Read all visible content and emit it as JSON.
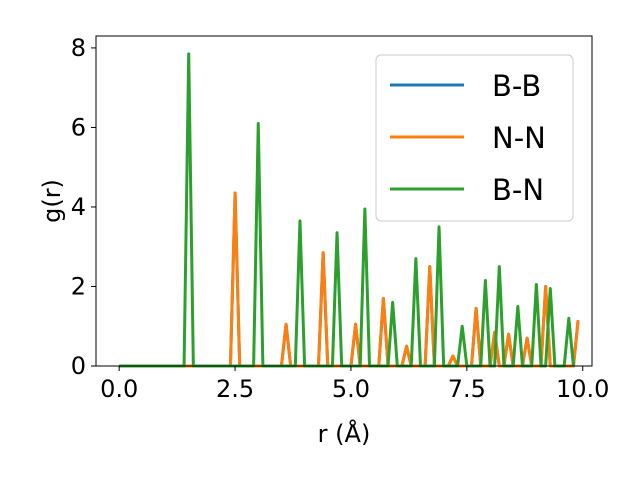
{
  "chart_data": {
    "type": "line",
    "xlabel": "r (Å)",
    "ylabel": "g(r)",
    "xlim": [
      -0.5,
      10.2
    ],
    "ylim": [
      0,
      8.3
    ],
    "xticks": [
      0.0,
      2.5,
      5.0,
      7.5,
      10.0
    ],
    "xtick_labels": [
      "0.0",
      "2.5",
      "5.0",
      "7.5",
      "10.0"
    ],
    "yticks": [
      0,
      2,
      4,
      6,
      8
    ],
    "ytick_labels": [
      "0",
      "2",
      "4",
      "6",
      "8"
    ],
    "grid": false,
    "legend_position": "top-right",
    "series": [
      {
        "name": "B-B",
        "color": "#1f77b4",
        "x": [
          0.0,
          2.4,
          2.5,
          2.6,
          3.5,
          3.6,
          3.7,
          4.3,
          4.4,
          4.5,
          5.0,
          5.1,
          5.2,
          5.6,
          5.7,
          5.8,
          6.1,
          6.2,
          6.3,
          6.6,
          6.7,
          6.8,
          7.1,
          7.2,
          7.3,
          7.6,
          7.7,
          7.8,
          8.0,
          8.1,
          8.2,
          8.3,
          8.4,
          8.5,
          8.7,
          8.8,
          8.9,
          9.1,
          9.2,
          9.3,
          9.8,
          9.9
        ],
        "y": [
          0.0,
          0.0,
          4.35,
          0.0,
          0.0,
          1.05,
          0.0,
          0.0,
          2.85,
          0.0,
          0.0,
          1.05,
          0.0,
          0.0,
          1.7,
          0.0,
          0.0,
          0.5,
          0.0,
          0.0,
          2.5,
          0.0,
          0.0,
          0.25,
          0.0,
          0.0,
          1.45,
          0.0,
          0.0,
          0.85,
          0.0,
          0.0,
          0.8,
          0.0,
          0.0,
          0.7,
          0.0,
          0.0,
          2.0,
          0.0,
          0.0,
          1.15
        ]
      },
      {
        "name": "N-N",
        "color": "#ff7f0e",
        "x": [
          0.0,
          2.4,
          2.5,
          2.6,
          3.5,
          3.6,
          3.7,
          4.3,
          4.4,
          4.5,
          5.0,
          5.1,
          5.2,
          5.6,
          5.7,
          5.8,
          6.1,
          6.2,
          6.3,
          6.6,
          6.7,
          6.8,
          7.1,
          7.2,
          7.3,
          7.6,
          7.7,
          7.8,
          8.0,
          8.1,
          8.2,
          8.3,
          8.4,
          8.5,
          8.7,
          8.8,
          8.9,
          9.1,
          9.2,
          9.3,
          9.8,
          9.9
        ],
        "y": [
          0.0,
          0.0,
          4.35,
          0.0,
          0.0,
          1.05,
          0.0,
          0.0,
          2.85,
          0.0,
          0.0,
          1.05,
          0.0,
          0.0,
          1.7,
          0.0,
          0.0,
          0.5,
          0.0,
          0.0,
          2.5,
          0.0,
          0.0,
          0.25,
          0.0,
          0.0,
          1.45,
          0.0,
          0.0,
          0.85,
          0.0,
          0.0,
          0.8,
          0.0,
          0.0,
          0.7,
          0.0,
          0.0,
          2.0,
          0.0,
          0.0,
          1.15
        ]
      },
      {
        "name": "B-N",
        "color": "#2ca02c",
        "x": [
          0.0,
          1.4,
          1.5,
          1.6,
          2.9,
          3.0,
          3.1,
          3.8,
          3.9,
          4.0,
          4.6,
          4.7,
          4.8,
          5.2,
          5.3,
          5.4,
          5.8,
          5.9,
          6.0,
          6.3,
          6.4,
          6.5,
          6.8,
          6.9,
          7.0,
          7.3,
          7.4,
          7.5,
          7.8,
          7.9,
          8.0,
          8.1,
          8.2,
          8.3,
          8.5,
          8.6,
          8.7,
          8.9,
          9.0,
          9.1,
          9.2,
          9.3,
          9.4,
          9.6,
          9.7,
          9.8
        ],
        "y": [
          0.0,
          0.0,
          7.85,
          0.0,
          0.0,
          6.1,
          0.0,
          0.0,
          3.65,
          0.0,
          0.0,
          3.35,
          0.0,
          0.0,
          3.95,
          0.0,
          0.0,
          1.6,
          0.0,
          0.0,
          2.7,
          0.0,
          0.0,
          3.5,
          0.0,
          0.0,
          1.0,
          0.0,
          0.0,
          2.15,
          0.0,
          0.0,
          2.5,
          0.0,
          0.0,
          1.5,
          0.0,
          0.0,
          2.05,
          0.0,
          0.0,
          1.95,
          0.0,
          0.0,
          1.2,
          0.0
        ]
      }
    ]
  }
}
